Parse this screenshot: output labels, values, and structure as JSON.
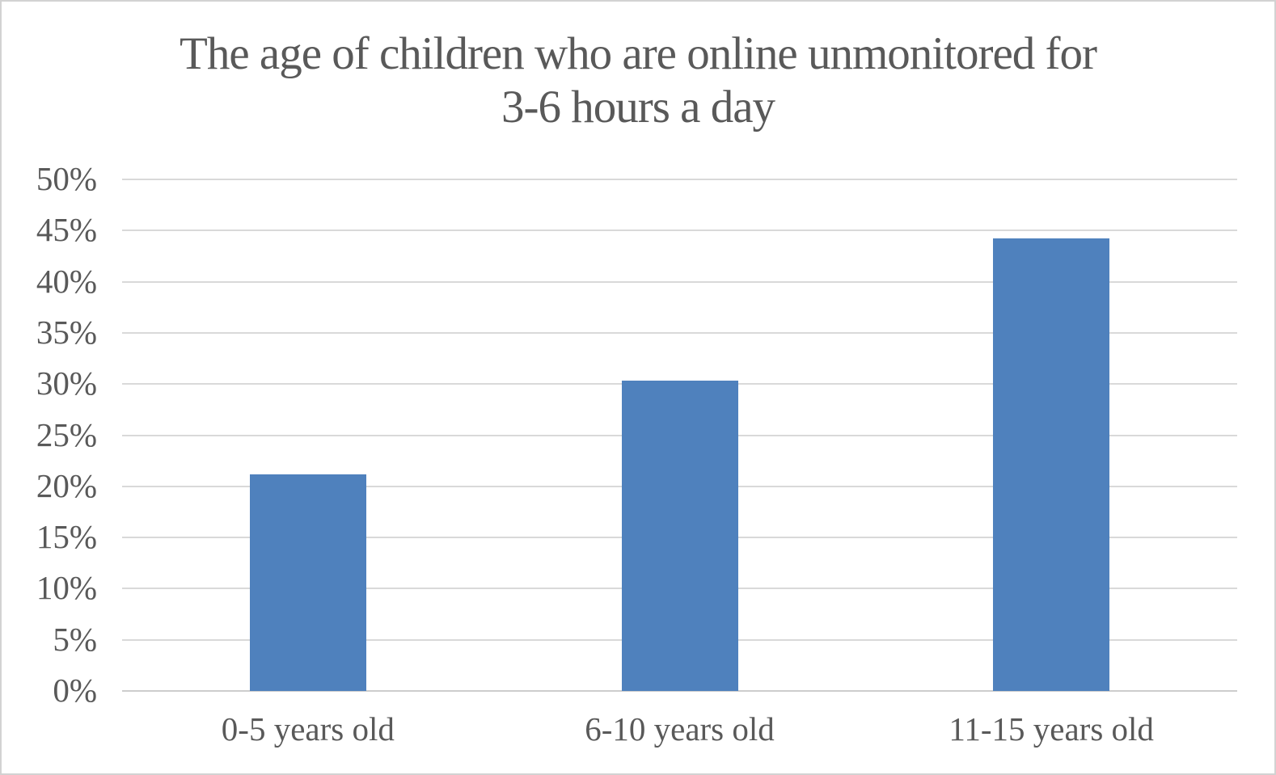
{
  "header": {
    "title_line1": "The age of children who are online unmonitored for",
    "title_line2": "3-6 hours a day"
  },
  "chart_data": {
    "type": "bar",
    "title": "The age of children who are online unmonitored for 3-6 hours a day",
    "categories": [
      "0-5 years old",
      "6-10 years old",
      "11-15 years old"
    ],
    "values": [
      21.2,
      30.3,
      44.2
    ],
    "xlabel": "",
    "ylabel": "",
    "ylim": [
      0,
      50
    ],
    "ytick_step": 5,
    "ytick_labels": [
      "0%",
      "5%",
      "10%",
      "15%",
      "20%",
      "25%",
      "30%",
      "35%",
      "40%",
      "45%",
      "50%"
    ],
    "grid": true,
    "legend": false,
    "bar_color": "#4F81BD",
    "text_color": "#595959",
    "gridline_color": "#D9D9D9",
    "axis_line_color": "#CDCDCD",
    "background_color": "#FFFFFF",
    "border_color": "#D2D2D2"
  }
}
